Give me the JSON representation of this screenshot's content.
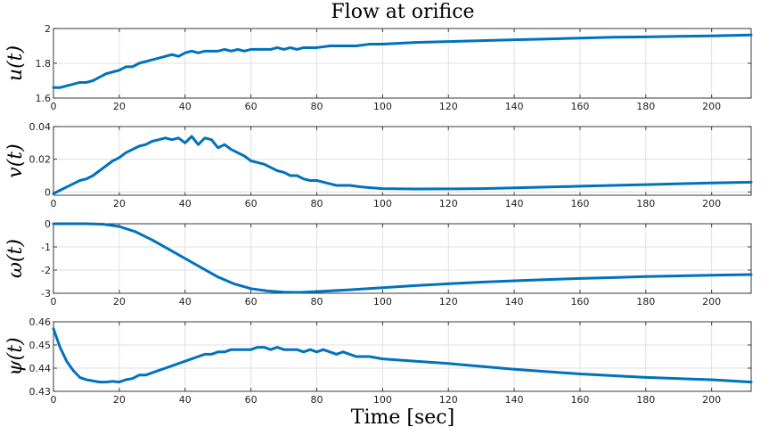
{
  "chart_data": {
    "type": "line",
    "title": "Flow at orifice",
    "xlabel": "Time [sec]",
    "xlim": [
      0,
      212
    ],
    "x_ticks": [
      0,
      20,
      40,
      60,
      80,
      100,
      120,
      140,
      160,
      180,
      200
    ],
    "grid": true,
    "line_color": "#0072BD",
    "subplots": [
      {
        "ylabel": "u(t)",
        "ylim": [
          1.6,
          2.0
        ],
        "y_tick_labels": [
          "1.6",
          "1.8",
          "2"
        ],
        "series": [
          {
            "x": [
              0,
              2,
              4,
              6,
              8,
              10,
              12,
              14,
              16,
              18,
              20,
              22,
              24,
              26,
              28,
              30,
              32,
              34,
              36,
              38,
              40,
              42,
              44,
              46,
              48,
              50,
              52,
              54,
              56,
              58,
              60,
              62,
              64,
              66,
              68,
              70,
              72,
              74,
              76,
              78,
              80,
              84,
              88,
              92,
              96,
              100,
              110,
              120,
              130,
              140,
              150,
              160,
              170,
              180,
              190,
              200,
              212
            ],
            "y": [
              1.66,
              1.66,
              1.67,
              1.68,
              1.69,
              1.69,
              1.7,
              1.72,
              1.74,
              1.75,
              1.76,
              1.78,
              1.78,
              1.8,
              1.81,
              1.82,
              1.83,
              1.84,
              1.85,
              1.84,
              1.86,
              1.87,
              1.86,
              1.87,
              1.87,
              1.87,
              1.88,
              1.87,
              1.88,
              1.87,
              1.88,
              1.88,
              1.88,
              1.88,
              1.89,
              1.88,
              1.89,
              1.88,
              1.89,
              1.89,
              1.89,
              1.9,
              1.9,
              1.9,
              1.91,
              1.91,
              1.92,
              1.925,
              1.93,
              1.935,
              1.94,
              1.945,
              1.95,
              1.952,
              1.955,
              1.958,
              1.963
            ]
          }
        ]
      },
      {
        "ylabel": "v(t)",
        "ylim": [
          -0.002,
          0.04
        ],
        "y_tick_labels": [
          "0",
          "0.02",
          "0.04"
        ],
        "series": [
          {
            "x": [
              0,
              2,
              4,
              6,
              8,
              10,
              12,
              14,
              16,
              18,
              20,
              22,
              24,
              26,
              28,
              30,
              32,
              34,
              36,
              38,
              40,
              42,
              44,
              46,
              48,
              50,
              52,
              54,
              56,
              58,
              60,
              62,
              64,
              66,
              68,
              70,
              72,
              74,
              76,
              78,
              80,
              82,
              84,
              86,
              88,
              90,
              94,
              100,
              110,
              120,
              130,
              140,
              160,
              180,
              200,
              212
            ],
            "y": [
              -0.001,
              0.001,
              0.003,
              0.005,
              0.007,
              0.008,
              0.01,
              0.013,
              0.016,
              0.019,
              0.021,
              0.024,
              0.026,
              0.028,
              0.029,
              0.031,
              0.032,
              0.033,
              0.032,
              0.033,
              0.03,
              0.034,
              0.029,
              0.033,
              0.032,
              0.027,
              0.029,
              0.026,
              0.024,
              0.022,
              0.019,
              0.018,
              0.017,
              0.015,
              0.013,
              0.012,
              0.01,
              0.01,
              0.008,
              0.007,
              0.007,
              0.006,
              0.005,
              0.004,
              0.004,
              0.004,
              0.003,
              0.002,
              0.0018,
              0.0019,
              0.002,
              0.0025,
              0.0035,
              0.0045,
              0.0055,
              0.006
            ]
          }
        ]
      },
      {
        "ylabel": "ω(t)",
        "ylim": [
          -3,
          0
        ],
        "y_tick_labels": [
          "-3",
          "-2",
          "-1",
          "0"
        ],
        "series": [
          {
            "x": [
              0,
              5,
              10,
              15,
              20,
              25,
              30,
              35,
              40,
              45,
              50,
              55,
              60,
              65,
              70,
              75,
              80,
              90,
              100,
              110,
              120,
              130,
              140,
              150,
              160,
              170,
              180,
              190,
              200,
              212
            ],
            "y": [
              0,
              0,
              0,
              -0.02,
              -0.12,
              -0.35,
              -0.7,
              -1.1,
              -1.5,
              -1.9,
              -2.3,
              -2.6,
              -2.8,
              -2.9,
              -2.95,
              -2.96,
              -2.93,
              -2.85,
              -2.76,
              -2.67,
              -2.59,
              -2.52,
              -2.46,
              -2.41,
              -2.36,
              -2.32,
              -2.28,
              -2.25,
              -2.22,
              -2.19
            ]
          }
        ]
      },
      {
        "ylabel": "ψ(t)",
        "ylim": [
          0.43,
          0.46
        ],
        "y_tick_labels": [
          "0.43",
          "0.44",
          "0.45",
          "0.46"
        ],
        "series": [
          {
            "x": [
              0,
              1,
              2,
              3,
              4,
              5,
              6,
              8,
              10,
              12,
              14,
              16,
              18,
              20,
              22,
              24,
              26,
              28,
              30,
              32,
              34,
              36,
              38,
              40,
              42,
              44,
              46,
              48,
              50,
              52,
              54,
              56,
              58,
              60,
              62,
              64,
              66,
              68,
              70,
              72,
              74,
              76,
              78,
              80,
              82,
              84,
              86,
              88,
              90,
              92,
              96,
              100,
              110,
              120,
              140,
              160,
              180,
              200,
              212
            ],
            "y": [
              0.457,
              0.453,
              0.449,
              0.446,
              0.443,
              0.441,
              0.439,
              0.436,
              0.435,
              0.4345,
              0.434,
              0.434,
              0.4343,
              0.434,
              0.435,
              0.4355,
              0.437,
              0.437,
              0.438,
              0.439,
              0.44,
              0.441,
              0.442,
              0.443,
              0.444,
              0.445,
              0.446,
              0.446,
              0.447,
              0.447,
              0.448,
              0.448,
              0.448,
              0.448,
              0.449,
              0.449,
              0.448,
              0.449,
              0.448,
              0.448,
              0.448,
              0.447,
              0.448,
              0.447,
              0.448,
              0.447,
              0.446,
              0.447,
              0.446,
              0.445,
              0.445,
              0.444,
              0.443,
              0.442,
              0.4395,
              0.4375,
              0.436,
              0.435,
              0.434
            ]
          }
        ]
      }
    ]
  }
}
